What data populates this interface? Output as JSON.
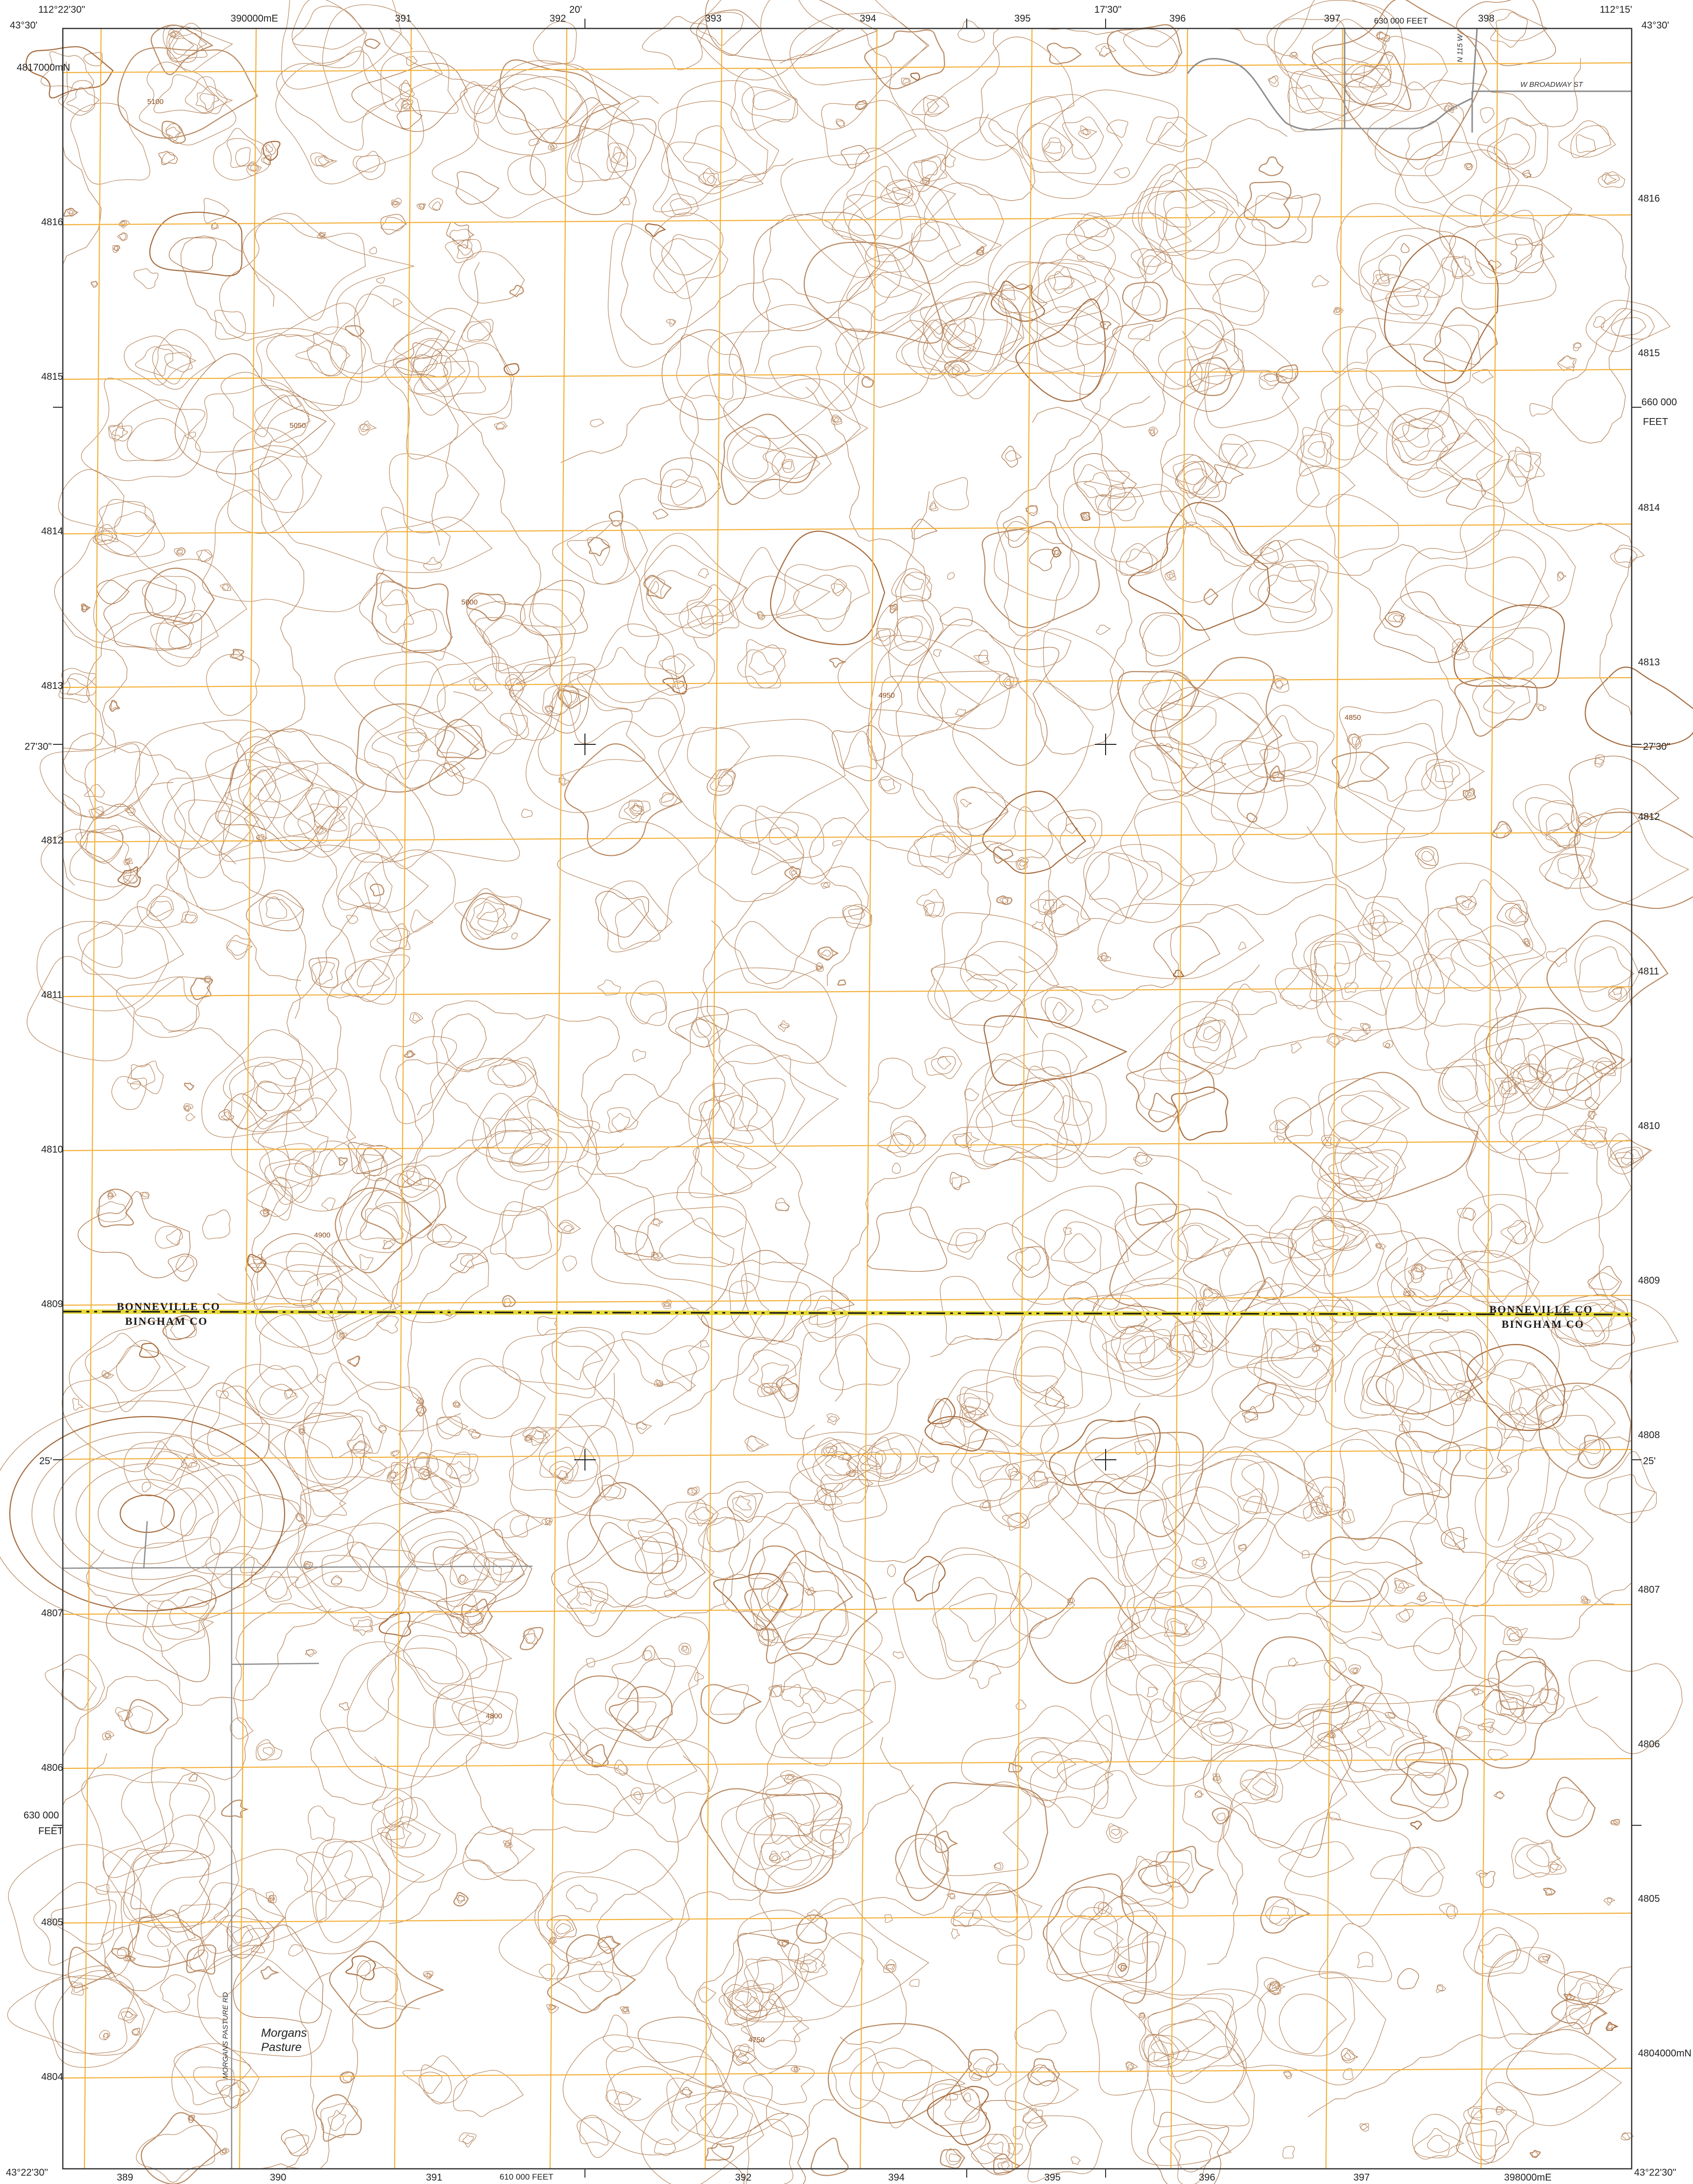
{
  "map": {
    "corners": {
      "top_left_lon": "112°22'30\"",
      "top_left_lat": "43°30'",
      "top_right_lon": "112°15'",
      "top_right_lat": "43°30'",
      "bottom_left_lat": "43°22'30\"",
      "bottom_right_lat": "43°22'30\""
    },
    "minute_ticks": {
      "top_20": "20'",
      "top_17_30": "17'30\"",
      "left_27_30": "27'30\"",
      "right_27_30": "27'30\"",
      "left_25": "25'",
      "right_25": "25'"
    },
    "easting_top": [
      "390000mE",
      "391",
      "392",
      "393",
      "394",
      "395",
      "396",
      "397",
      "398"
    ],
    "easting_bottom": [
      "389",
      "390",
      "391",
      "392",
      "394",
      "395",
      "396",
      "397",
      "398000mE"
    ],
    "northing_left": [
      "4817000mN",
      "4816",
      "4815",
      "4814",
      "4813",
      "4812",
      "4811",
      "4810",
      "4809",
      "4808",
      "4807",
      "4806",
      "4805",
      "4804"
    ],
    "northing_right": [
      "4816",
      "4815",
      "4814",
      "4813",
      "4812",
      "4811",
      "4810",
      "4809",
      "4808",
      "4807",
      "4806",
      "4805",
      "4804000mN"
    ],
    "state_plane": {
      "top": "630 000 FEET",
      "right_value": "660 000",
      "right_unit": "FEET",
      "left_value": "630 000",
      "left_unit": "FEET",
      "bottom": "610 000 FEET"
    },
    "counties": {
      "north": "BONNEVILLE CO",
      "south": "BINGHAM CO"
    },
    "roads": {
      "broadway": "W BROADWAY ST",
      "n115w": "N 115 W",
      "morgans_pasture_rd": "MORGANS PASTURE RD"
    },
    "places": {
      "morgans_pasture": "Morgans Pasture"
    },
    "contour_labels": [
      "5100",
      "5050",
      "5000",
      "4950",
      "4900",
      "4850",
      "4800",
      "4750"
    ],
    "colors": {
      "contour": "#b98a63",
      "index_contour": "#a56a3c",
      "utm_grid": "#f2b13c",
      "county_boundary": "#1b1b1b",
      "county_highlight": "#e8d93a",
      "road": "#8d8d8d",
      "neatline": "#333333"
    }
  }
}
